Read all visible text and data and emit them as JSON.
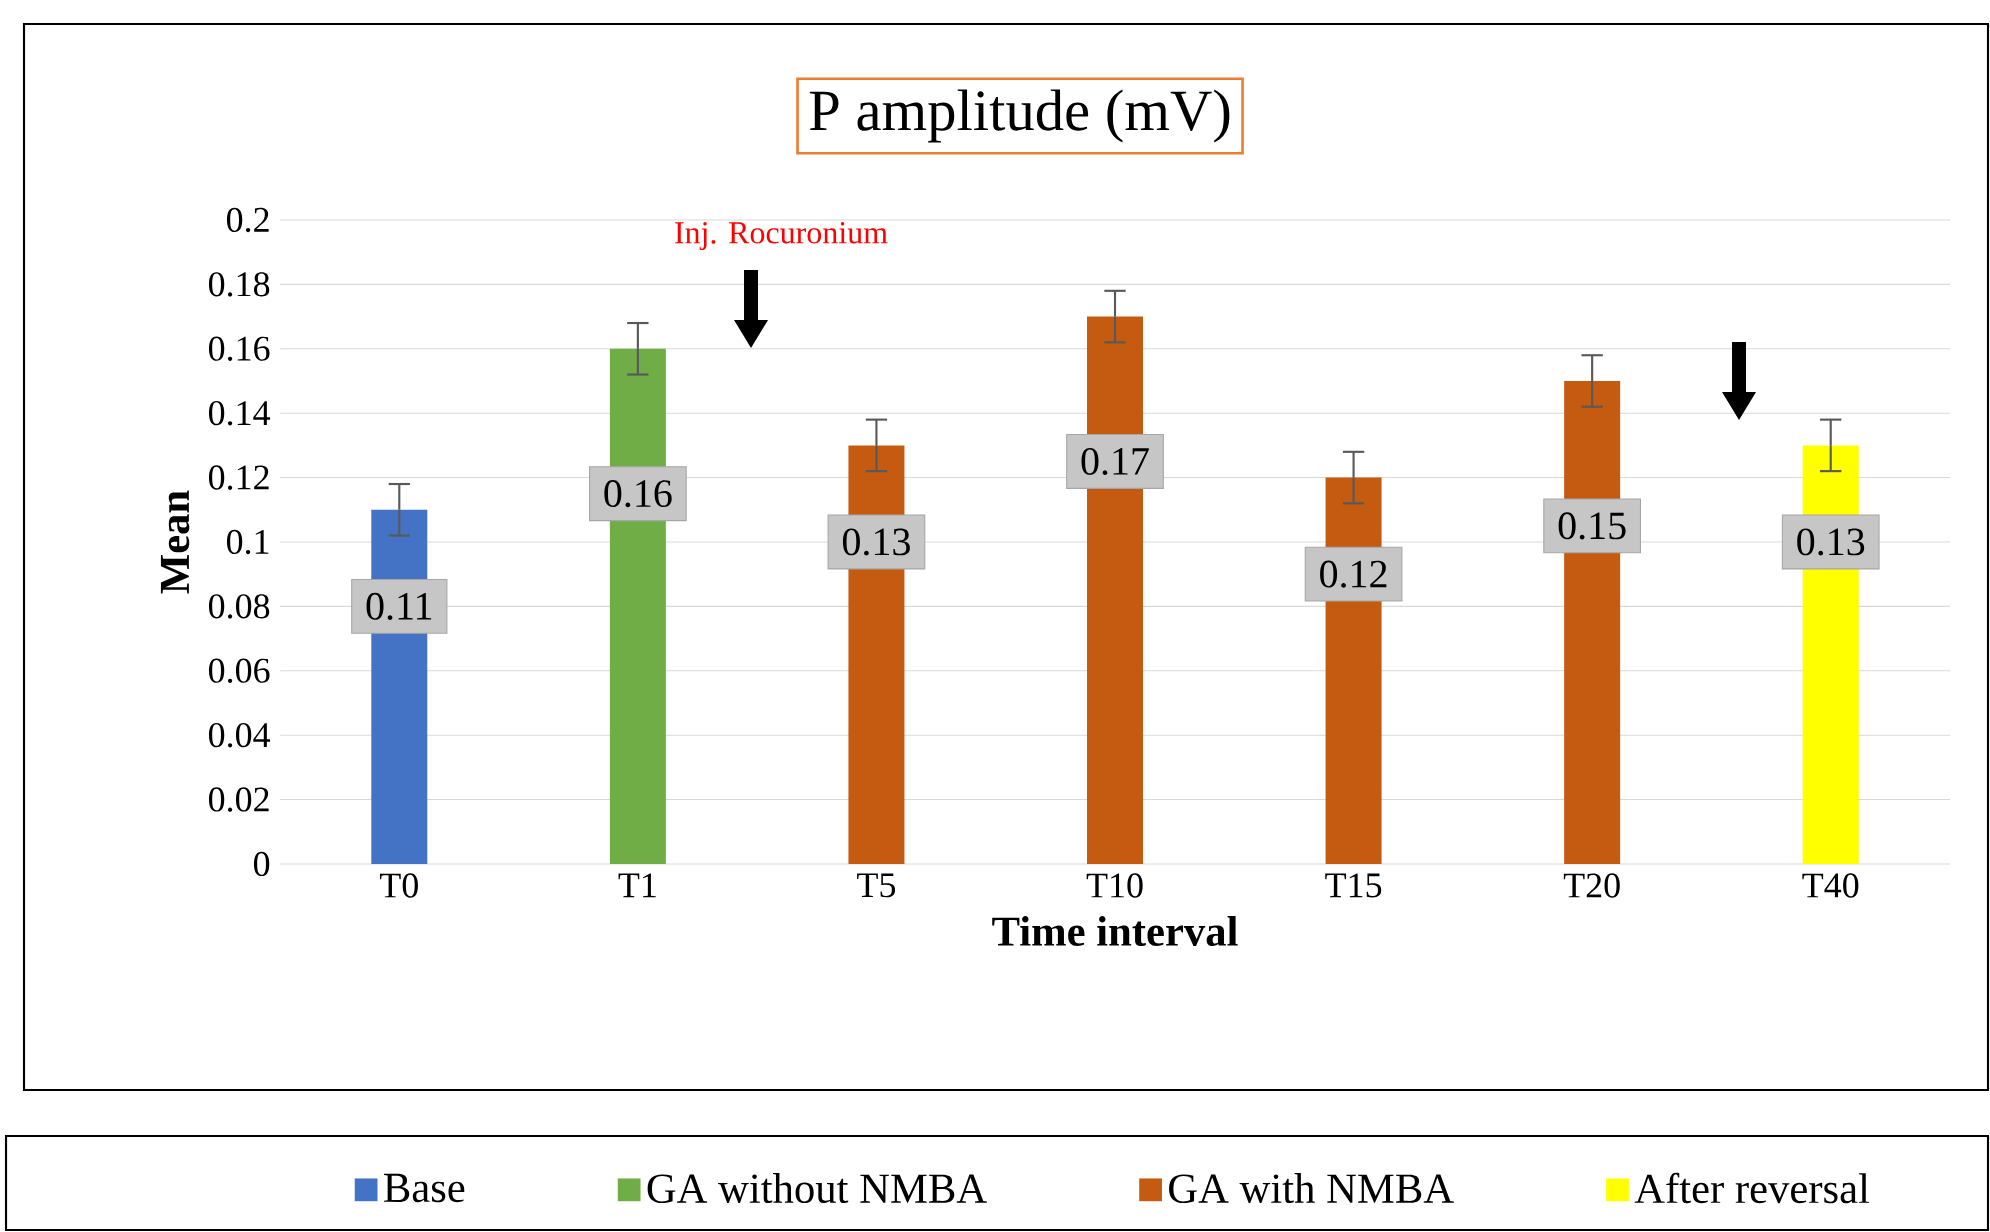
{
  "chart_data": {
    "type": "bar",
    "title": "P amplitude (mV)",
    "xlabel": "Time interval",
    "ylabel": "Mean",
    "categories": [
      "T0",
      "T1",
      "T5",
      "T10",
      "T15",
      "T20",
      "T40"
    ],
    "series": [
      {
        "name": "Base",
        "color": "#4472c4",
        "values": [
          0.11,
          null,
          null,
          null,
          null,
          null,
          null
        ],
        "errors": [
          0.008,
          null,
          null,
          null,
          null,
          null,
          null
        ]
      },
      {
        "name": "GA without NMBA",
        "color": "#70ad47",
        "values": [
          null,
          0.16,
          null,
          null,
          null,
          null,
          null
        ],
        "errors": [
          null,
          0.008,
          null,
          null,
          null,
          null,
          null
        ]
      },
      {
        "name": "GA with NMBA",
        "color": "#c55a11",
        "values": [
          null,
          null,
          0.13,
          0.17,
          0.12,
          0.15,
          null
        ],
        "errors": [
          null,
          null,
          0.008,
          0.008,
          0.008,
          0.008,
          null
        ]
      },
      {
        "name": "After reversal",
        "color": "#ffff00",
        "values": [
          null,
          null,
          null,
          null,
          null,
          null,
          0.13
        ],
        "errors": [
          null,
          null,
          null,
          null,
          null,
          null,
          0.008
        ]
      }
    ],
    "annotations": [
      "Inj. Rocuronium"
    ],
    "ylim": [
      0,
      0.2
    ],
    "yticks": [
      0,
      0.02,
      0.04,
      0.06,
      0.08,
      0.1,
      0.12,
      0.14,
      0.16,
      0.18,
      0.2
    ],
    "grid": "y",
    "legend": "bottom",
    "data_labels": true
  }
}
